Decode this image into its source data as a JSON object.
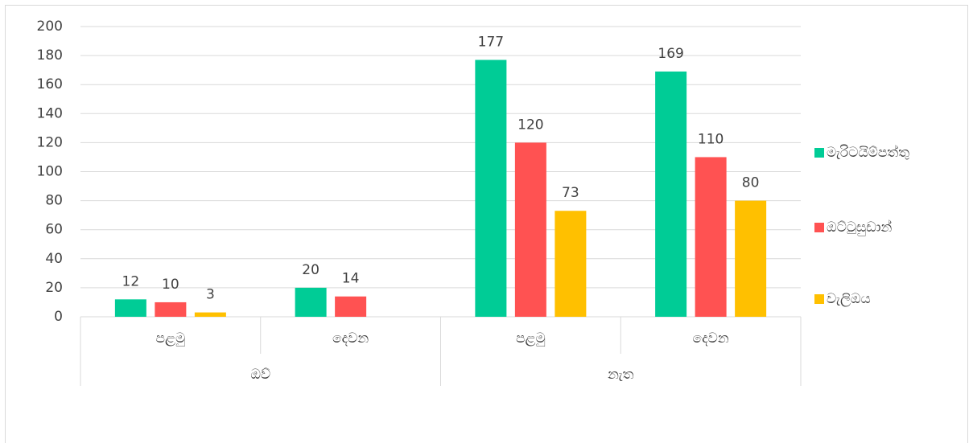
{
  "chart_data": {
    "type": "bar",
    "categories": [
      "පළමු",
      "දෙවන",
      "පළමු",
      "දෙවන"
    ],
    "category_groups": [
      "ඔව්",
      "නැත"
    ],
    "series": [
      {
        "name": "මැරිටයිම්පත්තු",
        "color": "#00cc96",
        "values": [
          12,
          20,
          177,
          169
        ]
      },
      {
        "name": "ඔට්ටුසුඩාන්",
        "color": "#ff5252",
        "values": [
          10,
          14,
          120,
          110
        ]
      },
      {
        "name": "වැලිඔය",
        "color": "#ffc000",
        "values": [
          3,
          null,
          73,
          80
        ]
      }
    ],
    "ylim": [
      0,
      200
    ],
    "yticks": [
      0,
      20,
      40,
      60,
      80,
      100,
      120,
      140,
      160,
      180,
      200
    ],
    "grid": true,
    "legend": "right",
    "data_labels": true
  }
}
